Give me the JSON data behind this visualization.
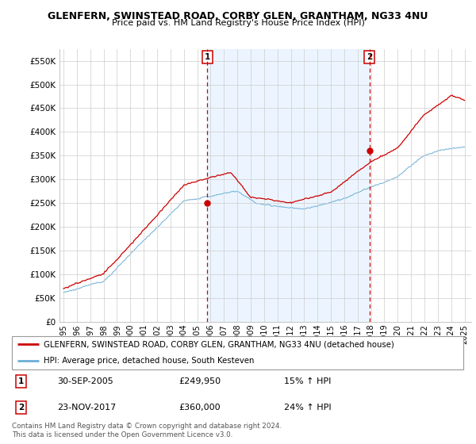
{
  "title": "GLENFERN, SWINSTEAD ROAD, CORBY GLEN, GRANTHAM, NG33 4NU",
  "subtitle": "Price paid vs. HM Land Registry's House Price Index (HPI)",
  "legend_line1": "GLENFERN, SWINSTEAD ROAD, CORBY GLEN, GRANTHAM, NG33 4NU (detached house)",
  "legend_line2": "HPI: Average price, detached house, South Kesteven",
  "footer": "Contains HM Land Registry data © Crown copyright and database right 2024.\nThis data is licensed under the Open Government Licence v3.0.",
  "sale1_date": "30-SEP-2005",
  "sale1_price": "£249,950",
  "sale1_hpi": "15% ↑ HPI",
  "sale2_date": "23-NOV-2017",
  "sale2_price": "£360,000",
  "sale2_hpi": "24% ↑ HPI",
  "red_color": "#cc0000",
  "blue_color": "#6baed6",
  "blue_fill": "#ddeeff",
  "dashed_red": "#cc0000",
  "background_color": "#ffffff",
  "grid_color": "#cccccc",
  "ylim": [
    0,
    575000
  ],
  "yticks": [
    0,
    50000,
    100000,
    150000,
    200000,
    250000,
    300000,
    350000,
    400000,
    450000,
    500000,
    550000
  ],
  "ytick_labels": [
    "£0",
    "£50K",
    "£100K",
    "£150K",
    "£200K",
    "£250K",
    "£300K",
    "£350K",
    "£400K",
    "£450K",
    "£500K",
    "£550K"
  ],
  "sale1_x": 2005.75,
  "sale2_x": 2017.89,
  "sale1_y": 249950,
  "sale2_y": 360000,
  "xlim_left": 1994.7,
  "xlim_right": 2025.5
}
